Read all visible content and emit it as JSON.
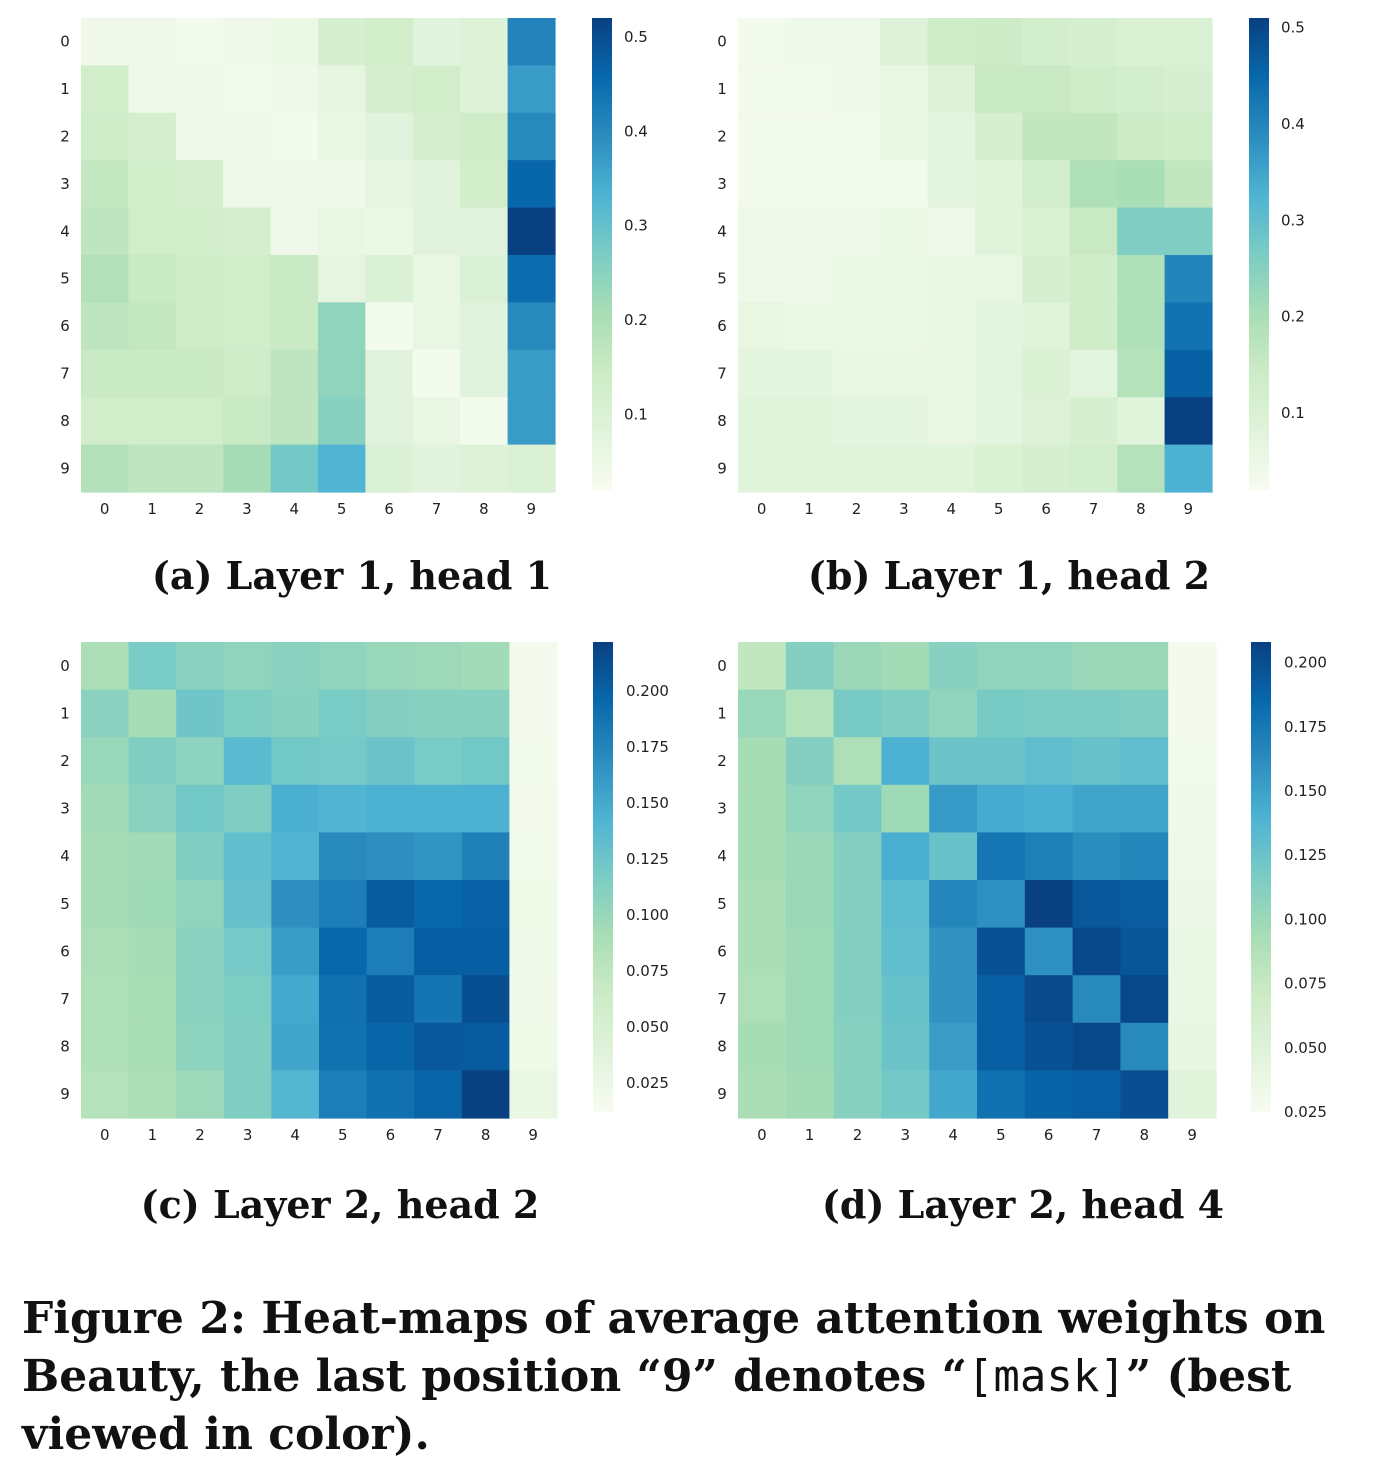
{
  "chart_data": [
    {
      "type": "heatmap",
      "id": "a",
      "title": "(a) Layer 1, head 1",
      "xticks": [
        "0",
        "1",
        "2",
        "3",
        "4",
        "5",
        "6",
        "7",
        "8",
        "9"
      ],
      "yticks": [
        "0",
        "1",
        "2",
        "3",
        "4",
        "5",
        "6",
        "7",
        "8",
        "9"
      ],
      "colormap": "GnBu",
      "vmin": 0.02,
      "vmax": 0.52,
      "colorbar_ticks": [
        0.1,
        0.2,
        0.3,
        0.4,
        0.5
      ],
      "colorbar_labels": [
        "0.1",
        "0.2",
        "0.3",
        "0.4",
        "0.5"
      ],
      "values": [
        [
          0.04,
          0.04,
          0.03,
          0.04,
          0.05,
          0.11,
          0.13,
          0.08,
          0.09,
          0.41
        ],
        [
          0.13,
          0.04,
          0.04,
          0.03,
          0.04,
          0.07,
          0.12,
          0.13,
          0.09,
          0.37
        ],
        [
          0.14,
          0.12,
          0.04,
          0.04,
          0.03,
          0.06,
          0.08,
          0.12,
          0.14,
          0.4
        ],
        [
          0.16,
          0.13,
          0.12,
          0.04,
          0.04,
          0.04,
          0.07,
          0.08,
          0.13,
          0.46
        ],
        [
          0.17,
          0.13,
          0.13,
          0.12,
          0.04,
          0.06,
          0.05,
          0.08,
          0.08,
          0.52
        ],
        [
          0.19,
          0.15,
          0.14,
          0.13,
          0.15,
          0.07,
          0.1,
          0.06,
          0.1,
          0.45
        ],
        [
          0.17,
          0.16,
          0.14,
          0.13,
          0.15,
          0.24,
          0.03,
          0.06,
          0.08,
          0.4
        ],
        [
          0.15,
          0.15,
          0.15,
          0.14,
          0.17,
          0.24,
          0.08,
          0.03,
          0.08,
          0.37
        ],
        [
          0.13,
          0.13,
          0.13,
          0.15,
          0.17,
          0.25,
          0.08,
          0.06,
          0.03,
          0.37
        ],
        [
          0.19,
          0.17,
          0.17,
          0.21,
          0.28,
          0.33,
          0.1,
          0.08,
          0.09,
          0.1
        ]
      ]
    },
    {
      "type": "heatmap",
      "id": "b",
      "title": "(b) Layer 1, head 2",
      "xticks": [
        "0",
        "1",
        "2",
        "3",
        "4",
        "5",
        "6",
        "7",
        "8",
        "9"
      ],
      "yticks": [
        "0",
        "1",
        "2",
        "3",
        "4",
        "5",
        "6",
        "7",
        "8",
        "9"
      ],
      "colormap": "GnBu",
      "vmin": 0.02,
      "vmax": 0.51,
      "colorbar_ticks": [
        0.1,
        0.2,
        0.3,
        0.4,
        0.5
      ],
      "colorbar_labels": [
        "0.1",
        "0.2",
        "0.3",
        "0.4",
        "0.5"
      ],
      "values": [
        [
          0.03,
          0.04,
          0.04,
          0.09,
          0.13,
          0.14,
          0.12,
          0.11,
          0.1,
          0.1
        ],
        [
          0.03,
          0.03,
          0.04,
          0.06,
          0.09,
          0.15,
          0.15,
          0.13,
          0.12,
          0.11
        ],
        [
          0.03,
          0.03,
          0.03,
          0.06,
          0.07,
          0.11,
          0.16,
          0.16,
          0.14,
          0.13
        ],
        [
          0.03,
          0.03,
          0.03,
          0.03,
          0.07,
          0.08,
          0.12,
          0.19,
          0.2,
          0.16
        ],
        [
          0.04,
          0.04,
          0.04,
          0.05,
          0.04,
          0.08,
          0.1,
          0.15,
          0.26,
          0.26
        ],
        [
          0.04,
          0.04,
          0.05,
          0.05,
          0.06,
          0.06,
          0.11,
          0.13,
          0.19,
          0.4
        ],
        [
          0.06,
          0.05,
          0.05,
          0.05,
          0.06,
          0.07,
          0.08,
          0.13,
          0.19,
          0.43
        ],
        [
          0.07,
          0.07,
          0.06,
          0.06,
          0.06,
          0.07,
          0.1,
          0.07,
          0.18,
          0.46
        ],
        [
          0.08,
          0.08,
          0.07,
          0.07,
          0.06,
          0.07,
          0.09,
          0.11,
          0.08,
          0.51
        ],
        [
          0.08,
          0.08,
          0.08,
          0.08,
          0.08,
          0.1,
          0.11,
          0.12,
          0.18,
          0.33
        ]
      ]
    },
    {
      "type": "heatmap",
      "id": "c",
      "title": "(c) Layer 2, head 2",
      "xticks": [
        "0",
        "1",
        "2",
        "3",
        "4",
        "5",
        "6",
        "7",
        "8",
        "9"
      ],
      "yticks": [
        "0",
        "1",
        "2",
        "3",
        "4",
        "5",
        "6",
        "7",
        "8",
        "9"
      ],
      "colormap": "GnBu",
      "vmin": 0.012,
      "vmax": 0.222,
      "colorbar_ticks": [
        0.025,
        0.05,
        0.075,
        0.1,
        0.125,
        0.15,
        0.175,
        0.2
      ],
      "colorbar_labels": [
        "0.025",
        "0.050",
        "0.075",
        "0.100",
        "0.125",
        "0.150",
        "0.175",
        "0.200"
      ],
      "values": [
        [
          0.088,
          0.118,
          0.108,
          0.104,
          0.108,
          0.104,
          0.1,
          0.098,
          0.094,
          0.015
        ],
        [
          0.108,
          0.092,
          0.124,
          0.116,
          0.11,
          0.118,
          0.112,
          0.11,
          0.11,
          0.015
        ],
        [
          0.1,
          0.114,
          0.106,
          0.136,
          0.122,
          0.12,
          0.126,
          0.118,
          0.122,
          0.016
        ],
        [
          0.094,
          0.108,
          0.122,
          0.114,
          0.146,
          0.142,
          0.144,
          0.144,
          0.144,
          0.017
        ],
        [
          0.092,
          0.094,
          0.114,
          0.132,
          0.142,
          0.172,
          0.168,
          0.164,
          0.178,
          0.018
        ],
        [
          0.092,
          0.096,
          0.104,
          0.13,
          0.168,
          0.18,
          0.204,
          0.196,
          0.2,
          0.022
        ],
        [
          0.088,
          0.092,
          0.108,
          0.12,
          0.158,
          0.196,
          0.18,
          0.202,
          0.202,
          0.021
        ],
        [
          0.086,
          0.09,
          0.108,
          0.116,
          0.15,
          0.19,
          0.204,
          0.186,
          0.212,
          0.02
        ],
        [
          0.086,
          0.09,
          0.106,
          0.114,
          0.152,
          0.188,
          0.198,
          0.206,
          0.204,
          0.022
        ],
        [
          0.082,
          0.088,
          0.098,
          0.114,
          0.14,
          0.18,
          0.19,
          0.198,
          0.222,
          0.028
        ]
      ]
    },
    {
      "type": "heatmap",
      "id": "d",
      "title": "(d) Layer 2, head 4",
      "xticks": [
        "0",
        "1",
        "2",
        "3",
        "4",
        "5",
        "6",
        "7",
        "8",
        "9"
      ],
      "yticks": [
        "0",
        "1",
        "2",
        "3",
        "4",
        "5",
        "6",
        "7",
        "8",
        "9"
      ],
      "colormap": "GnBu",
      "vmin": 0.025,
      "vmax": 0.208,
      "colorbar_ticks": [
        0.025,
        0.05,
        0.075,
        0.1,
        0.125,
        0.15,
        0.175,
        0.2
      ],
      "colorbar_labels": [
        "0.025",
        "0.050",
        "0.075",
        "0.100",
        "0.125",
        "0.150",
        "0.175",
        "0.200"
      ],
      "values": [
        [
          0.078,
          0.112,
          0.1,
          0.096,
          0.11,
          0.106,
          0.106,
          0.1,
          0.1,
          0.028
        ],
        [
          0.102,
          0.086,
          0.118,
          0.114,
          0.106,
          0.118,
          0.116,
          0.116,
          0.114,
          0.028
        ],
        [
          0.094,
          0.112,
          0.09,
          0.14,
          0.124,
          0.124,
          0.13,
          0.126,
          0.13,
          0.03
        ],
        [
          0.094,
          0.106,
          0.12,
          0.098,
          0.154,
          0.144,
          0.142,
          0.148,
          0.148,
          0.031
        ],
        [
          0.094,
          0.1,
          0.112,
          0.142,
          0.126,
          0.176,
          0.17,
          0.162,
          0.166,
          0.033
        ],
        [
          0.092,
          0.1,
          0.112,
          0.132,
          0.166,
          0.16,
          0.208,
          0.194,
          0.192,
          0.034
        ],
        [
          0.092,
          0.098,
          0.112,
          0.13,
          0.158,
          0.198,
          0.16,
          0.204,
          0.196,
          0.037
        ],
        [
          0.09,
          0.098,
          0.112,
          0.126,
          0.158,
          0.19,
          0.202,
          0.164,
          0.204,
          0.038
        ],
        [
          0.094,
          0.098,
          0.11,
          0.124,
          0.152,
          0.19,
          0.198,
          0.204,
          0.164,
          0.041
        ],
        [
          0.092,
          0.096,
          0.11,
          0.12,
          0.146,
          0.18,
          0.188,
          0.19,
          0.2,
          0.048
        ]
      ]
    }
  ],
  "captions": {
    "a": "(a) Layer 1, head 1",
    "b": "(b) Layer 1, head 2",
    "c": "(c) Layer 2, head 2",
    "d": "(d) Layer 2, head 4"
  },
  "figure_caption": {
    "prefix": "Figure 2: Heat-maps of average attention weights on Beauty, the last position “9” denotes “",
    "code": "[mask]",
    "suffix": "” (best viewed in color)."
  }
}
